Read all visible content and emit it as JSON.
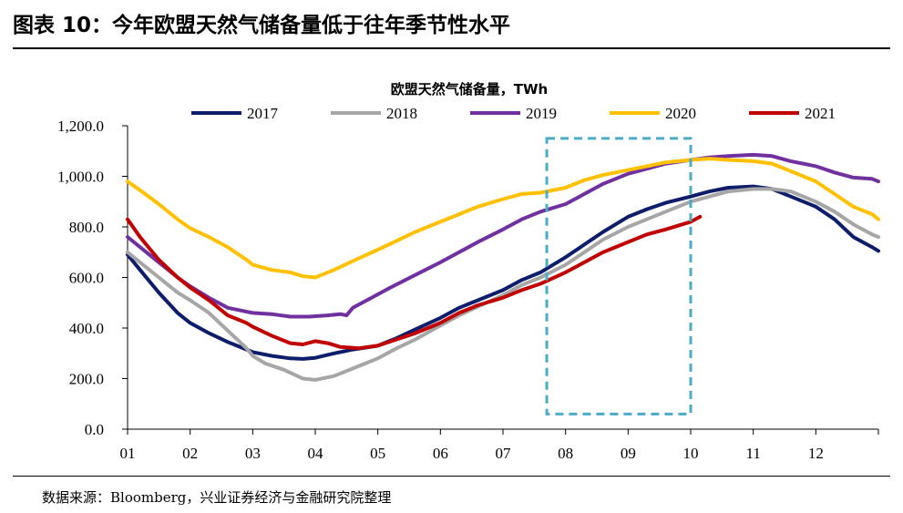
{
  "header": {
    "title": "图表 10：今年欧盟天然气储备量低于往年季节性水平"
  },
  "footer": {
    "source": "数据来源：Bloomberg，兴业证券经济与金融研究院整理"
  },
  "chart_data": {
    "type": "line",
    "title": "欧盟天然气储备量，TWh",
    "xlabel": "",
    "ylabel": "",
    "x_ticks": [
      "01",
      "02",
      "03",
      "04",
      "05",
      "06",
      "07",
      "08",
      "09",
      "10",
      "11",
      "12"
    ],
    "y_ticks": [
      "0.0",
      "200.0",
      "400.0",
      "600.0",
      "800.0",
      "1,000.0",
      "1,200.0"
    ],
    "xlim": [
      1,
      13
    ],
    "ylim": [
      0,
      1200
    ],
    "grid": false,
    "legend": "top",
    "highlight_box": {
      "x": [
        7.7,
        10.0
      ],
      "y": [
        60,
        1150
      ],
      "color": "#4bacc6"
    },
    "series": [
      {
        "name": "2017",
        "color": "#0e1d6b",
        "points": [
          [
            1.0,
            690
          ],
          [
            1.2,
            630
          ],
          [
            1.5,
            540
          ],
          [
            1.8,
            460
          ],
          [
            2.0,
            420
          ],
          [
            2.3,
            380
          ],
          [
            2.6,
            345
          ],
          [
            2.9,
            315
          ],
          [
            3.0,
            305
          ],
          [
            3.3,
            290
          ],
          [
            3.6,
            280
          ],
          [
            3.8,
            278
          ],
          [
            4.0,
            282
          ],
          [
            4.3,
            300
          ],
          [
            4.6,
            315
          ],
          [
            5.0,
            330
          ],
          [
            5.3,
            360
          ],
          [
            5.6,
            395
          ],
          [
            6.0,
            440
          ],
          [
            6.3,
            480
          ],
          [
            6.6,
            510
          ],
          [
            7.0,
            550
          ],
          [
            7.3,
            590
          ],
          [
            7.6,
            620
          ],
          [
            8.0,
            680
          ],
          [
            8.3,
            730
          ],
          [
            8.6,
            780
          ],
          [
            9.0,
            840
          ],
          [
            9.3,
            870
          ],
          [
            9.6,
            895
          ],
          [
            10.0,
            920
          ],
          [
            10.3,
            940
          ],
          [
            10.6,
            955
          ],
          [
            11.0,
            960
          ],
          [
            11.3,
            950
          ],
          [
            11.6,
            920
          ],
          [
            12.0,
            880
          ],
          [
            12.3,
            830
          ],
          [
            12.6,
            760
          ],
          [
            12.9,
            720
          ],
          [
            13.0,
            705
          ]
        ]
      },
      {
        "name": "2018",
        "color": "#a6a6a6",
        "points": [
          [
            1.0,
            700
          ],
          [
            1.2,
            660
          ],
          [
            1.5,
            600
          ],
          [
            1.8,
            540
          ],
          [
            2.0,
            510
          ],
          [
            2.3,
            460
          ],
          [
            2.6,
            390
          ],
          [
            2.9,
            320
          ],
          [
            3.0,
            290
          ],
          [
            3.2,
            260
          ],
          [
            3.5,
            235
          ],
          [
            3.8,
            200
          ],
          [
            4.0,
            195
          ],
          [
            4.3,
            210
          ],
          [
            4.6,
            240
          ],
          [
            5.0,
            280
          ],
          [
            5.3,
            320
          ],
          [
            5.6,
            355
          ],
          [
            6.0,
            410
          ],
          [
            6.3,
            450
          ],
          [
            6.6,
            485
          ],
          [
            7.0,
            530
          ],
          [
            7.3,
            570
          ],
          [
            7.6,
            600
          ],
          [
            8.0,
            650
          ],
          [
            8.3,
            700
          ],
          [
            8.6,
            750
          ],
          [
            9.0,
            800
          ],
          [
            9.3,
            830
          ],
          [
            9.6,
            860
          ],
          [
            10.0,
            900
          ],
          [
            10.3,
            920
          ],
          [
            10.6,
            940
          ],
          [
            11.0,
            950
          ],
          [
            11.3,
            950
          ],
          [
            11.6,
            940
          ],
          [
            12.0,
            900
          ],
          [
            12.3,
            860
          ],
          [
            12.6,
            810
          ],
          [
            12.9,
            770
          ],
          [
            13.0,
            760
          ]
        ]
      },
      {
        "name": "2019",
        "color": "#7030a0",
        "points": [
          [
            1.0,
            760
          ],
          [
            1.2,
            720
          ],
          [
            1.5,
            660
          ],
          [
            1.8,
            600
          ],
          [
            2.0,
            565
          ],
          [
            2.3,
            520
          ],
          [
            2.6,
            480
          ],
          [
            2.9,
            465
          ],
          [
            3.0,
            460
          ],
          [
            3.3,
            455
          ],
          [
            3.6,
            445
          ],
          [
            3.9,
            445
          ],
          [
            4.2,
            450
          ],
          [
            4.4,
            455
          ],
          [
            4.5,
            450
          ],
          [
            4.6,
            480
          ],
          [
            4.9,
            520
          ],
          [
            5.2,
            560
          ],
          [
            5.6,
            610
          ],
          [
            6.0,
            660
          ],
          [
            6.3,
            700
          ],
          [
            6.6,
            740
          ],
          [
            7.0,
            790
          ],
          [
            7.3,
            830
          ],
          [
            7.6,
            860
          ],
          [
            8.0,
            890
          ],
          [
            8.3,
            930
          ],
          [
            8.6,
            970
          ],
          [
            9.0,
            1010
          ],
          [
            9.3,
            1030
          ],
          [
            9.6,
            1050
          ],
          [
            10.0,
            1065
          ],
          [
            10.3,
            1075
          ],
          [
            10.6,
            1080
          ],
          [
            11.0,
            1085
          ],
          [
            11.3,
            1080
          ],
          [
            11.6,
            1060
          ],
          [
            12.0,
            1040
          ],
          [
            12.3,
            1015
          ],
          [
            12.6,
            995
          ],
          [
            12.9,
            990
          ],
          [
            13.0,
            980
          ]
        ]
      },
      {
        "name": "2020",
        "color": "#ffc000",
        "points": [
          [
            1.0,
            980
          ],
          [
            1.2,
            945
          ],
          [
            1.5,
            890
          ],
          [
            1.8,
            830
          ],
          [
            2.0,
            795
          ],
          [
            2.3,
            760
          ],
          [
            2.6,
            720
          ],
          [
            2.9,
            670
          ],
          [
            3.0,
            650
          ],
          [
            3.3,
            630
          ],
          [
            3.6,
            620
          ],
          [
            3.8,
            605
          ],
          [
            4.0,
            600
          ],
          [
            4.3,
            630
          ],
          [
            4.6,
            665
          ],
          [
            5.0,
            710
          ],
          [
            5.3,
            745
          ],
          [
            5.6,
            780
          ],
          [
            6.0,
            820
          ],
          [
            6.3,
            850
          ],
          [
            6.6,
            880
          ],
          [
            7.0,
            910
          ],
          [
            7.3,
            930
          ],
          [
            7.6,
            935
          ],
          [
            8.0,
            955
          ],
          [
            8.3,
            985
          ],
          [
            8.6,
            1005
          ],
          [
            9.0,
            1025
          ],
          [
            9.3,
            1040
          ],
          [
            9.6,
            1055
          ],
          [
            10.0,
            1065
          ],
          [
            10.3,
            1070
          ],
          [
            10.6,
            1065
          ],
          [
            11.0,
            1060
          ],
          [
            11.3,
            1050
          ],
          [
            11.6,
            1020
          ],
          [
            12.0,
            980
          ],
          [
            12.3,
            930
          ],
          [
            12.6,
            880
          ],
          [
            12.9,
            850
          ],
          [
            13.0,
            830
          ]
        ]
      },
      {
        "name": "2021",
        "color": "#c00000",
        "points": [
          [
            1.0,
            830
          ],
          [
            1.2,
            760
          ],
          [
            1.5,
            670
          ],
          [
            1.8,
            600
          ],
          [
            2.0,
            560
          ],
          [
            2.3,
            510
          ],
          [
            2.6,
            450
          ],
          [
            2.9,
            420
          ],
          [
            3.0,
            405
          ],
          [
            3.3,
            370
          ],
          [
            3.6,
            340
          ],
          [
            3.8,
            335
          ],
          [
            4.0,
            348
          ],
          [
            4.2,
            340
          ],
          [
            4.4,
            325
          ],
          [
            4.7,
            320
          ],
          [
            5.0,
            330
          ],
          [
            5.3,
            355
          ],
          [
            5.6,
            380
          ],
          [
            6.0,
            420
          ],
          [
            6.3,
            460
          ],
          [
            6.6,
            490
          ],
          [
            7.0,
            520
          ],
          [
            7.3,
            550
          ],
          [
            7.6,
            575
          ],
          [
            8.0,
            620
          ],
          [
            8.3,
            660
          ],
          [
            8.6,
            700
          ],
          [
            9.0,
            740
          ],
          [
            9.3,
            770
          ],
          [
            9.6,
            790
          ],
          [
            10.0,
            820
          ],
          [
            10.15,
            840
          ]
        ]
      }
    ]
  }
}
